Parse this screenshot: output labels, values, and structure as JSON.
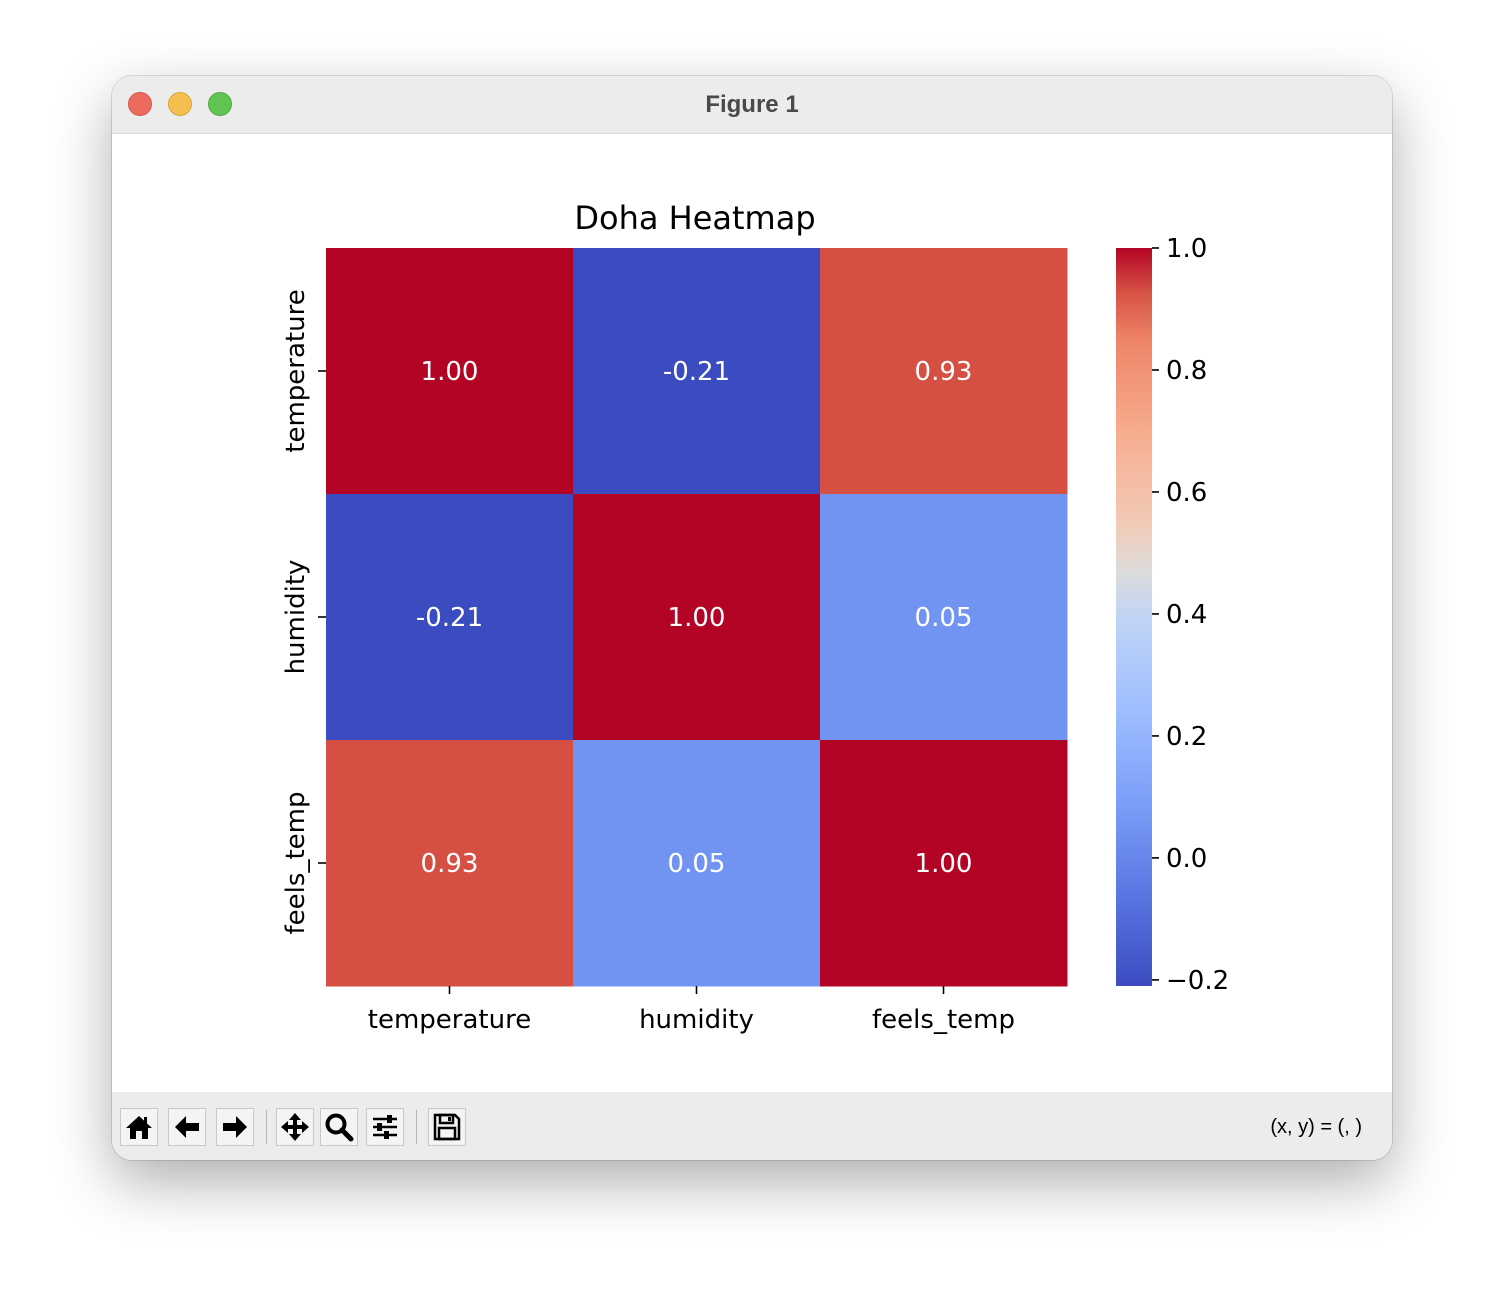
{
  "window": {
    "title": "Figure 1"
  },
  "toolbar": {
    "buttons": [
      {
        "name": "home-button",
        "icon": "home-icon"
      },
      {
        "name": "back-button",
        "icon": "arrow-left-icon"
      },
      {
        "name": "forward-button",
        "icon": "arrow-right-icon"
      },
      {
        "name": "pan-button",
        "icon": "move-icon"
      },
      {
        "name": "zoom-button",
        "icon": "magnifier-icon"
      },
      {
        "name": "configure-subplots-button",
        "icon": "sliders-icon"
      },
      {
        "name": "save-button",
        "icon": "floppy-disk-icon"
      }
    ],
    "coords_label": "(x, y) = (, )"
  },
  "chart_data": {
    "type": "heatmap",
    "title": "Doha Heatmap",
    "x_categories": [
      "temperature",
      "humidity",
      "feels_temp"
    ],
    "y_categories": [
      "temperature",
      "humidity",
      "feels_temp"
    ],
    "values": [
      [
        1.0,
        -0.21,
        0.93
      ],
      [
        -0.21,
        1.0,
        0.05
      ],
      [
        0.93,
        0.05,
        1.0
      ]
    ],
    "annotations": [
      [
        "1.00",
        "-0.21",
        "0.93"
      ],
      [
        "-0.21",
        "1.00",
        "0.05"
      ],
      [
        "0.93",
        "0.05",
        "1.00"
      ]
    ],
    "colormap": "coolwarm",
    "colorbar": {
      "vmin": -0.21,
      "vmax": 1.0,
      "ticks": [
        1.0,
        0.8,
        0.6,
        0.4,
        0.2,
        0.0,
        -0.2
      ],
      "tick_labels": [
        "1.0",
        "0.8",
        "0.6",
        "0.4",
        "0.2",
        "0.0",
        "−0.2"
      ]
    },
    "colors": {
      "low": "#3b4cc0",
      "mid": "#dddcdc",
      "high": "#b40426"
    },
    "grid": false,
    "legend": "colorbar-right"
  }
}
